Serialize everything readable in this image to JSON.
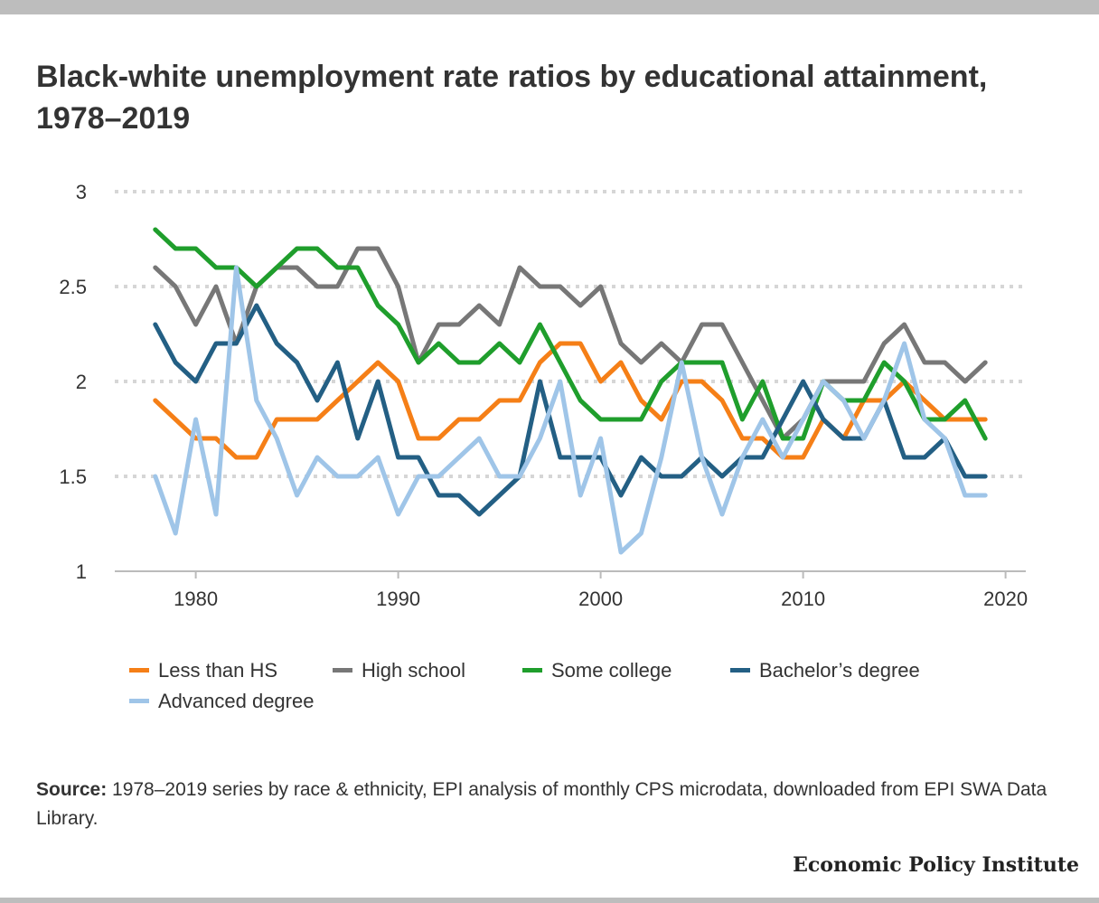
{
  "title": "Black-white unemployment rate ratios by educational attainment, 1978–2019",
  "source_label": "Source:",
  "source_text": " 1978–2019 series by race & ethnicity, EPI analysis of monthly CPS microdata, downloaded from EPI SWA Data Library.",
  "brand": "Economic Policy Institute",
  "chart_data": {
    "type": "line",
    "title": "Black-white unemployment rate ratios by educational attainment, 1978–2019",
    "xlabel": "",
    "ylabel": "",
    "xlim": [
      1976,
      2021
    ],
    "ylim": [
      1,
      3
    ],
    "x_ticks": [
      1980,
      1990,
      2000,
      2010,
      2020
    ],
    "y_ticks": [
      1,
      1.5,
      2,
      2.5,
      3
    ],
    "grid": "horizontal dotted",
    "legend": "bottom",
    "x": [
      1978,
      1979,
      1980,
      1981,
      1982,
      1983,
      1984,
      1985,
      1986,
      1987,
      1988,
      1989,
      1990,
      1991,
      1992,
      1993,
      1994,
      1995,
      1996,
      1997,
      1998,
      1999,
      2000,
      2001,
      2002,
      2003,
      2004,
      2005,
      2006,
      2007,
      2008,
      2009,
      2010,
      2011,
      2012,
      2013,
      2014,
      2015,
      2016,
      2017,
      2018,
      2019
    ],
    "series": [
      {
        "name": "Less than HS",
        "color": "#f57f17",
        "values": [
          1.9,
          1.8,
          1.7,
          1.7,
          1.6,
          1.6,
          1.8,
          1.8,
          1.8,
          1.9,
          2.0,
          2.1,
          2.0,
          1.7,
          1.7,
          1.8,
          1.8,
          1.9,
          1.9,
          2.1,
          2.2,
          2.2,
          2.0,
          2.1,
          1.9,
          1.8,
          2.0,
          2.0,
          1.9,
          1.7,
          1.7,
          1.6,
          1.6,
          1.8,
          1.7,
          1.9,
          1.9,
          2.0,
          1.9,
          1.8,
          1.8,
          1.8
        ]
      },
      {
        "name": "High school",
        "color": "#777777",
        "values": [
          2.6,
          2.5,
          2.3,
          2.5,
          2.2,
          2.5,
          2.6,
          2.6,
          2.5,
          2.5,
          2.7,
          2.7,
          2.5,
          2.1,
          2.3,
          2.3,
          2.4,
          2.3,
          2.6,
          2.5,
          2.5,
          2.4,
          2.5,
          2.2,
          2.1,
          2.2,
          2.1,
          2.3,
          2.3,
          2.1,
          1.9,
          1.7,
          1.8,
          2.0,
          2.0,
          2.0,
          2.2,
          2.3,
          2.1,
          2.1,
          2.0,
          2.1
        ]
      },
      {
        "name": "Some college",
        "color": "#1f9e2c",
        "values": [
          2.8,
          2.7,
          2.7,
          2.6,
          2.6,
          2.5,
          2.6,
          2.7,
          2.7,
          2.6,
          2.6,
          2.4,
          2.3,
          2.1,
          2.2,
          2.1,
          2.1,
          2.2,
          2.1,
          2.3,
          2.1,
          1.9,
          1.8,
          1.8,
          1.8,
          2.0,
          2.1,
          2.1,
          2.1,
          1.8,
          2.0,
          1.7,
          1.7,
          2.0,
          1.9,
          1.9,
          2.1,
          2.0,
          1.8,
          1.8,
          1.9,
          1.7
        ]
      },
      {
        "name": "Bachelor’s degree",
        "color": "#235f84",
        "values": [
          2.3,
          2.1,
          2.0,
          2.2,
          2.2,
          2.4,
          2.2,
          2.1,
          1.9,
          2.1,
          1.7,
          2.0,
          1.6,
          1.6,
          1.4,
          1.4,
          1.3,
          1.4,
          1.5,
          2.0,
          1.6,
          1.6,
          1.6,
          1.4,
          1.6,
          1.5,
          1.5,
          1.6,
          1.5,
          1.6,
          1.6,
          1.8,
          2.0,
          1.8,
          1.7,
          1.7,
          1.9,
          1.6,
          1.6,
          1.7,
          1.5,
          1.5
        ]
      },
      {
        "name": "Advanced degree",
        "color": "#9fc5e8",
        "values": [
          1.5,
          1.2,
          1.8,
          1.3,
          2.6,
          1.9,
          1.7,
          1.4,
          1.6,
          1.5,
          1.5,
          1.6,
          1.3,
          1.5,
          1.5,
          1.6,
          1.7,
          1.5,
          1.5,
          1.7,
          2.0,
          1.4,
          1.7,
          1.1,
          1.2,
          1.6,
          2.1,
          1.6,
          1.3,
          1.6,
          1.8,
          1.6,
          1.8,
          2.0,
          1.9,
          1.7,
          1.9,
          2.2,
          1.8,
          1.7,
          1.4,
          1.4
        ]
      }
    ]
  }
}
